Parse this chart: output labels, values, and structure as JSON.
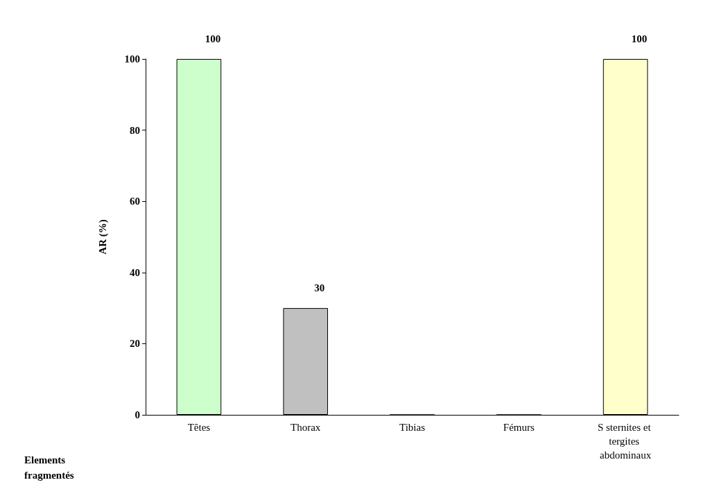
{
  "chart_data": {
    "type": "bar",
    "xlabel": "Elements fragmentés",
    "ylabel": "AR (%)",
    "categories": [
      "Têtes",
      "Thorax",
      "Tibias",
      "Fémurs",
      "S sternites et tergites abdominaux"
    ],
    "values": [
      100,
      30,
      0,
      0,
      100
    ],
    "colors": [
      "#ccffcc",
      "#c0c0c0",
      "#800040",
      "#cc6699",
      "#ffffcc"
    ],
    "value_labels": [
      "100",
      "30",
      null,
      null,
      "100"
    ],
    "ylim": [
      0,
      100
    ],
    "yticks": [
      0,
      20,
      40,
      60,
      80,
      100
    ],
    "grid": false
  }
}
